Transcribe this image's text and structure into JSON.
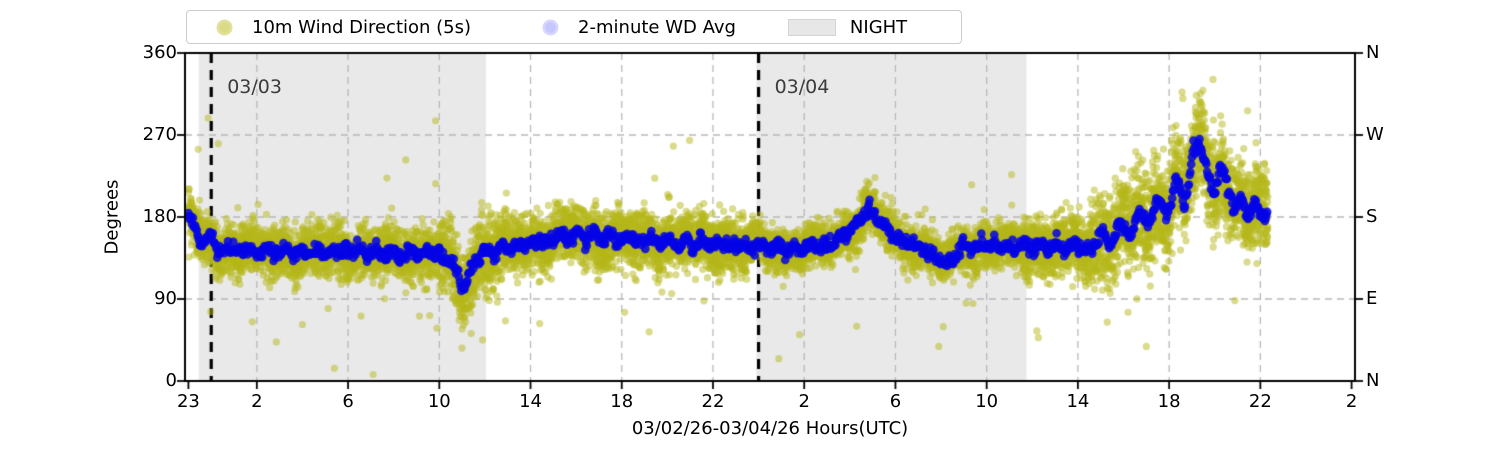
{
  "figure": {
    "legend": {
      "items": [
        {
          "label": "10m Wind Direction (5s)",
          "marker": "dot",
          "color": "#bcbd22"
        },
        {
          "label": "2-minute WD Avg",
          "marker": "dot",
          "color": "#b8b8fb"
        },
        {
          "label": "NIGHT",
          "marker": "swatch",
          "color": "#e7e7e7"
        }
      ]
    }
  },
  "chart_data": {
    "type": "scatter",
    "title": "",
    "xlabel": "03/02/26-03/04/26  Hours(UTC)",
    "ylabel": "Degrees",
    "ylim": [
      0,
      360
    ],
    "xlim_hours_from_start": [
      -0.15,
      51.15
    ],
    "x_start_means": "hour 23 UTC of 03/02/26",
    "grid": "dashed gray, vertical at x ticks, horizontal at 90/180/270",
    "legend_position": "top, outside axes",
    "y_ticks_left": [
      {
        "v": 0,
        "label": "0"
      },
      {
        "v": 90,
        "label": "90"
      },
      {
        "v": 180,
        "label": "180"
      },
      {
        "v": 270,
        "label": "270"
      },
      {
        "v": 360,
        "label": "360"
      }
    ],
    "y_ticks_right_compass": [
      {
        "v": 0,
        "label": "N"
      },
      {
        "v": 90,
        "label": "E"
      },
      {
        "v": 180,
        "label": "S"
      },
      {
        "v": 270,
        "label": "W"
      },
      {
        "v": 360,
        "label": "N"
      }
    ],
    "x_ticks": [
      {
        "t": 0,
        "label": "23"
      },
      {
        "t": 3,
        "label": "2"
      },
      {
        "t": 7,
        "label": "6"
      },
      {
        "t": 11,
        "label": "10"
      },
      {
        "t": 15,
        "label": "14"
      },
      {
        "t": 19,
        "label": "18"
      },
      {
        "t": 23,
        "label": "22"
      },
      {
        "t": 27,
        "label": "2"
      },
      {
        "t": 31,
        "label": "6"
      },
      {
        "t": 35,
        "label": "10"
      },
      {
        "t": 39,
        "label": "14"
      },
      {
        "t": 43,
        "label": "18"
      },
      {
        "t": 47,
        "label": "22"
      },
      {
        "t": 51,
        "label": "2"
      }
    ],
    "night_regions": [
      {
        "t_start": 0.45,
        "t_end": 13.05
      },
      {
        "t_start": 24.9,
        "t_end": 36.75
      }
    ],
    "date_lines": [
      {
        "t": 1,
        "label": "03/03"
      },
      {
        "t": 25,
        "label": "03/04"
      }
    ],
    "colors": {
      "wind_5s": "rgba(182,183,25,0.5)",
      "wd_avg": "rgba(5,5,230,0.85)",
      "night_fill": "rgba(0,0,0,0.085)",
      "grid": "#b8b8b8",
      "spine": "#000000",
      "date_line": "#000000"
    },
    "seed": 420,
    "series": [
      {
        "name": "2-minute WD Avg",
        "sample_minutes": 2,
        "dot_radius": 4.3,
        "jitter_sigma_deg": 3.2,
        "t_end": 47.33,
        "keypoints_hour_degree": [
          [
            0,
            183
          ],
          [
            0.3,
            168
          ],
          [
            0.6,
            150
          ],
          [
            1,
            158
          ],
          [
            1.4,
            140
          ],
          [
            1.8,
            149
          ],
          [
            2.2,
            141
          ],
          [
            2.6,
            146
          ],
          [
            3,
            140
          ],
          [
            3.4,
            145
          ],
          [
            3.8,
            139
          ],
          [
            4.2,
            144
          ],
          [
            4.6,
            139
          ],
          [
            5,
            143
          ],
          [
            5.4,
            139
          ],
          [
            5.8,
            144
          ],
          [
            6.2,
            140
          ],
          [
            6.6,
            145
          ],
          [
            7,
            141
          ],
          [
            7.4,
            146
          ],
          [
            7.8,
            139
          ],
          [
            8.2,
            143
          ],
          [
            8.6,
            138
          ],
          [
            9,
            142
          ],
          [
            9.4,
            138
          ],
          [
            9.8,
            143
          ],
          [
            10.2,
            139
          ],
          [
            10.6,
            142
          ],
          [
            11,
            137
          ],
          [
            11.4,
            133
          ],
          [
            11.8,
            118
          ],
          [
            12.05,
            99
          ],
          [
            12.3,
            118
          ],
          [
            12.6,
            132
          ],
          [
            13,
            143
          ],
          [
            13.4,
            139
          ],
          [
            13.8,
            148
          ],
          [
            14.2,
            146
          ],
          [
            14.6,
            153
          ],
          [
            15,
            150
          ],
          [
            15.4,
            157
          ],
          [
            15.8,
            153
          ],
          [
            16.2,
            161
          ],
          [
            16.6,
            156
          ],
          [
            17,
            163
          ],
          [
            17.4,
            156
          ],
          [
            17.8,
            161
          ],
          [
            18.2,
            154
          ],
          [
            18.6,
            160
          ],
          [
            19,
            153
          ],
          [
            19.4,
            159
          ],
          [
            19.8,
            152
          ],
          [
            20.2,
            157
          ],
          [
            20.6,
            151
          ],
          [
            21,
            156
          ],
          [
            21.4,
            149
          ],
          [
            21.8,
            154
          ],
          [
            22.2,
            148
          ],
          [
            22.6,
            153
          ],
          [
            23,
            148
          ],
          [
            23.4,
            152
          ],
          [
            23.8,
            147
          ],
          [
            24.2,
            151
          ],
          [
            24.6,
            145
          ],
          [
            25,
            150
          ],
          [
            25.4,
            144
          ],
          [
            25.8,
            148
          ],
          [
            26.2,
            143
          ],
          [
            26.6,
            148
          ],
          [
            27,
            144
          ],
          [
            27.4,
            149
          ],
          [
            27.8,
            146
          ],
          [
            28.2,
            152
          ],
          [
            28.6,
            157
          ],
          [
            29,
            166
          ],
          [
            29.4,
            176
          ],
          [
            29.8,
            187
          ],
          [
            30.2,
            178
          ],
          [
            30.6,
            167
          ],
          [
            31,
            157
          ],
          [
            31.4,
            152
          ],
          [
            31.8,
            149
          ],
          [
            32.2,
            144
          ],
          [
            32.6,
            138
          ],
          [
            33,
            132
          ],
          [
            33.3,
            129
          ],
          [
            33.7,
            140
          ],
          [
            34.1,
            149
          ],
          [
            34.5,
            145
          ],
          [
            34.9,
            151
          ],
          [
            35.3,
            146
          ],
          [
            35.7,
            150
          ],
          [
            36.1,
            146
          ],
          [
            36.5,
            150
          ],
          [
            36.9,
            145
          ],
          [
            37.3,
            150
          ],
          [
            37.7,
            143
          ],
          [
            38.1,
            151
          ],
          [
            38.5,
            145
          ],
          [
            38.9,
            152
          ],
          [
            39.3,
            143
          ],
          [
            39.7,
            149
          ],
          [
            40.1,
            163
          ],
          [
            40.5,
            151
          ],
          [
            40.9,
            176
          ],
          [
            41.3,
            157
          ],
          [
            41.7,
            189
          ],
          [
            42.1,
            170
          ],
          [
            42.5,
            203
          ],
          [
            42.9,
            180
          ],
          [
            43.3,
            222
          ],
          [
            43.7,
            195
          ],
          [
            44.05,
            250
          ],
          [
            44.35,
            263
          ],
          [
            44.65,
            232
          ],
          [
            44.95,
            203
          ],
          [
            45.25,
            237
          ],
          [
            45.55,
            214
          ],
          [
            45.85,
            189
          ],
          [
            46.15,
            201
          ],
          [
            46.45,
            180
          ],
          [
            46.75,
            192
          ],
          [
            47.05,
            183
          ],
          [
            47.33,
            180
          ]
        ]
      },
      {
        "name": "10m Wind Direction (5s)",
        "sample_seconds": 15,
        "dot_radius": 3.6,
        "t_end": 47.33,
        "centered_on": "2-minute WD Avg keypoints",
        "spread_profile_sigma_deg": [
          {
            "until": 11,
            "sigma": 13
          },
          {
            "until": 14,
            "sigma": 19
          },
          {
            "until": 24.5,
            "sigma": 15
          },
          {
            "until": 36.6,
            "sigma": 11.5
          },
          {
            "until": 39.5,
            "sigma": 16
          },
          {
            "until": 48,
            "sigma": 24
          }
        ],
        "outlier_probability": 0.0035,
        "explicit_outliers_hour_degree": [
          [
            2.8,
            65
          ],
          [
            5.0,
            62
          ],
          [
            6.4,
            14
          ],
          [
            8.1,
            7
          ],
          [
            10.9,
            58
          ],
          [
            12.0,
            57
          ],
          [
            12.4,
            52
          ],
          [
            13.9,
            66
          ],
          [
            15.4,
            63
          ],
          [
            20.2,
            54
          ],
          [
            22.6,
            88
          ],
          [
            29.3,
            60
          ],
          [
            32.9,
            38
          ],
          [
            34.4,
            85
          ],
          [
            37.2,
            55
          ],
          [
            42.0,
            38
          ],
          [
            44.2,
            293
          ]
        ]
      }
    ]
  }
}
